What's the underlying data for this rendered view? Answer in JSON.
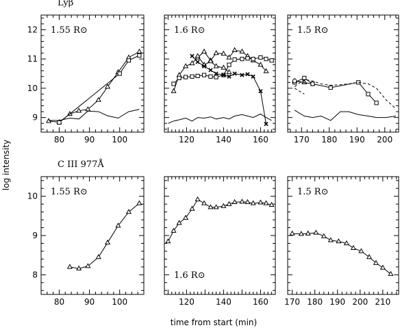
{
  "chart_data": [
    {
      "type": "line",
      "row_label": "Lyβ",
      "panel_label": "1.55 R⊙",
      "label_pos": "top-left",
      "xlim": [
        74,
        108
      ],
      "ylim": [
        8.5,
        12.5
      ],
      "xticks": [
        80,
        90,
        100
      ],
      "yticks": [
        9,
        10,
        11,
        12
      ],
      "series": [
        {
          "marker": "triangle",
          "style": "solid",
          "x": [
            76.5,
            80,
            83.5,
            86.5,
            89.5,
            93,
            96,
            99.5,
            103,
            106.5
          ],
          "y": [
            8.88,
            8.84,
            9.12,
            9.23,
            9.28,
            9.6,
            10.05,
            10.55,
            11.05,
            11.25
          ]
        },
        {
          "marker": "square",
          "style": "solid",
          "x": [
            80,
            100,
            103,
            106.5
          ],
          "y": [
            8.83,
            10.5,
            10.95,
            11.12
          ]
        },
        {
          "marker": "none",
          "style": "solid",
          "x": [
            76.5,
            80,
            83.5,
            86.5,
            89.5,
            93,
            96,
            99.5,
            103,
            106.5
          ],
          "y": [
            8.9,
            8.9,
            8.98,
            8.95,
            9.22,
            9.2,
            9.06,
            8.98,
            9.2,
            9.28
          ]
        }
      ]
    },
    {
      "type": "line",
      "row_label": "",
      "panel_label": "1.6 R⊙",
      "label_pos": "top-left",
      "xlim": [
        108,
        168
      ],
      "ylim": [
        8.5,
        12.5
      ],
      "xticks": [
        120,
        140,
        160
      ],
      "yticks": [
        9,
        10,
        11,
        12
      ],
      "series": [
        {
          "marker": "triangle",
          "style": "solid",
          "x": [
            113,
            116,
            119.5,
            123,
            126,
            129.5,
            133,
            136,
            140,
            143,
            146,
            150,
            153,
            156,
            160,
            163
          ],
          "y": [
            9.9,
            10.45,
            10.75,
            10.85,
            11.05,
            11.25,
            10.95,
            11.2,
            11.18,
            11.05,
            11.3,
            11.25,
            11.1,
            10.95,
            10.8,
            10.58
          ]
        },
        {
          "marker": "triangle",
          "style": "solid",
          "x": [
            126,
            129.5,
            133,
            136,
            140,
            143
          ],
          "y": [
            11.1,
            10.8,
            10.92,
            10.75,
            10.7,
            10.55
          ]
        },
        {
          "marker": "square",
          "style": "solid",
          "x": [
            113,
            116,
            119.5,
            123,
            126,
            129.5,
            133,
            136,
            140,
            143,
            146,
            150,
            153,
            156,
            160,
            163,
            166
          ],
          "y": [
            10.15,
            10.35,
            10.38,
            10.4,
            10.42,
            10.45,
            10.4,
            10.38,
            10.45,
            10.8,
            10.98,
            11.0,
            11.02,
            11.0,
            11.05,
            11.0,
            10.95
          ]
        },
        {
          "marker": "cross",
          "style": "solid",
          "x": [
            123,
            126,
            129.5,
            133,
            136,
            140,
            143,
            146,
            150,
            153,
            156,
            160,
            163
          ],
          "y": [
            11.1,
            10.9,
            10.75,
            10.62,
            10.5,
            10.45,
            10.4,
            10.5,
            10.45,
            10.48,
            10.4,
            9.9,
            8.78
          ]
        },
        {
          "marker": "none",
          "style": "solid",
          "x": [
            110,
            113,
            116,
            119.5,
            123,
            126,
            129.5,
            133,
            136,
            140,
            143,
            146,
            150,
            153,
            156,
            160,
            163,
            166
          ],
          "y": [
            8.8,
            8.88,
            8.92,
            8.98,
            8.88,
            9.0,
            8.98,
            9.02,
            8.95,
            9.0,
            8.95,
            9.05,
            9.1,
            9.05,
            9.0,
            9.12,
            9.0,
            8.9
          ]
        }
      ]
    },
    {
      "type": "line",
      "row_label": "",
      "panel_label": "1.5 R⊙",
      "label_pos": "top-left",
      "xlim": [
        165,
        205
      ],
      "ylim": [
        8.5,
        12.5
      ],
      "xticks": [
        170,
        180,
        190,
        200
      ],
      "yticks": [
        9,
        10,
        11,
        12
      ],
      "series": [
        {
          "marker": "triangle",
          "style": "solid",
          "x": [
            167.5,
            171
          ],
          "y": [
            10.25,
            10.2
          ]
        },
        {
          "marker": "square",
          "style": "solid",
          "x": [
            167.5,
            171,
            174,
            180.5,
            190.5,
            194,
            197
          ],
          "y": [
            10.2,
            10.35,
            10.15,
            10.02,
            10.2,
            9.8,
            9.5
          ]
        },
        {
          "marker": "circle",
          "style": "solid",
          "x": [
            167.5,
            174
          ],
          "y": [
            10.25,
            10.15
          ]
        },
        {
          "marker": "none",
          "style": "dashed",
          "x": [
            167.5,
            171,
            174,
            177,
            180.5,
            184,
            187,
            190.5,
            194,
            197,
            200.5,
            204
          ],
          "y": [
            10.05,
            10.3,
            10.25,
            10.15,
            10.1,
            10.12,
            10.15,
            10.2,
            10.15,
            10.0,
            9.6,
            9.3
          ]
        },
        {
          "marker": "none",
          "style": "dashed",
          "x": [
            167.5,
            171
          ],
          "y": [
            10.0,
            9.8
          ]
        },
        {
          "marker": "none",
          "style": "solid",
          "x": [
            167.5,
            171,
            174,
            177,
            180.5,
            184,
            187,
            190.5,
            194,
            197,
            200.5,
            204
          ],
          "y": [
            9.25,
            9.05,
            9.0,
            9.05,
            8.9,
            9.2,
            9.2,
            9.1,
            9.05,
            9.0,
            9.0,
            9.05
          ]
        }
      ]
    },
    {
      "type": "line",
      "row_label": "C III 977Å",
      "panel_label": "1.55 R⊙",
      "label_pos": "top-left",
      "xlim": [
        74,
        108
      ],
      "ylim": [
        7.5,
        10.5
      ],
      "xticks": [
        80,
        90,
        100
      ],
      "yticks": [
        8,
        9,
        10
      ],
      "series": [
        {
          "marker": "triangle",
          "style": "solid",
          "x": [
            83.5,
            86.5,
            89.5,
            93,
            96,
            99.5,
            103,
            106.5
          ],
          "y": [
            8.2,
            8.16,
            8.22,
            8.45,
            8.82,
            9.25,
            9.6,
            9.82
          ]
        }
      ]
    },
    {
      "type": "line",
      "row_label": "",
      "panel_label": "1.6 R⊙",
      "label_pos": "bottom-left",
      "xlim": [
        108,
        168
      ],
      "ylim": [
        7.5,
        10.5
      ],
      "xticks": [
        120,
        140,
        160
      ],
      "yticks": [
        8,
        9,
        10
      ],
      "series": [
        {
          "marker": "triangle",
          "style": "solid",
          "x": [
            110,
            113,
            116,
            119.5,
            123,
            126,
            129.5,
            133,
            136,
            140,
            143,
            146,
            150,
            153,
            156,
            160,
            163,
            166
          ],
          "y": [
            8.85,
            9.12,
            9.32,
            9.45,
            9.68,
            9.92,
            9.82,
            9.72,
            9.72,
            9.75,
            9.8,
            9.85,
            9.86,
            9.85,
            9.82,
            9.84,
            9.82,
            9.78
          ]
        }
      ]
    },
    {
      "type": "line",
      "row_label": "",
      "panel_label": "1.5 R⊙",
      "label_pos": "top-left",
      "xlim": [
        168,
        217
      ],
      "ylim": [
        7.5,
        10.5
      ],
      "xticks": [
        170,
        180,
        190,
        200,
        210
      ],
      "yticks": [
        8,
        9,
        10
      ],
      "series": [
        {
          "marker": "triangle",
          "style": "solid",
          "x": [
            170,
            174,
            177,
            180.5,
            184,
            187,
            190.5,
            194,
            197,
            200.5,
            204,
            207,
            210,
            213.5
          ],
          "y": [
            9.05,
            9.04,
            9.05,
            9.07,
            8.98,
            8.88,
            8.85,
            8.8,
            8.68,
            8.6,
            8.45,
            8.3,
            8.18,
            8.02
          ]
        }
      ]
    }
  ],
  "y_axis_label": "log intensity",
  "x_axis_label": "time from start (min)"
}
